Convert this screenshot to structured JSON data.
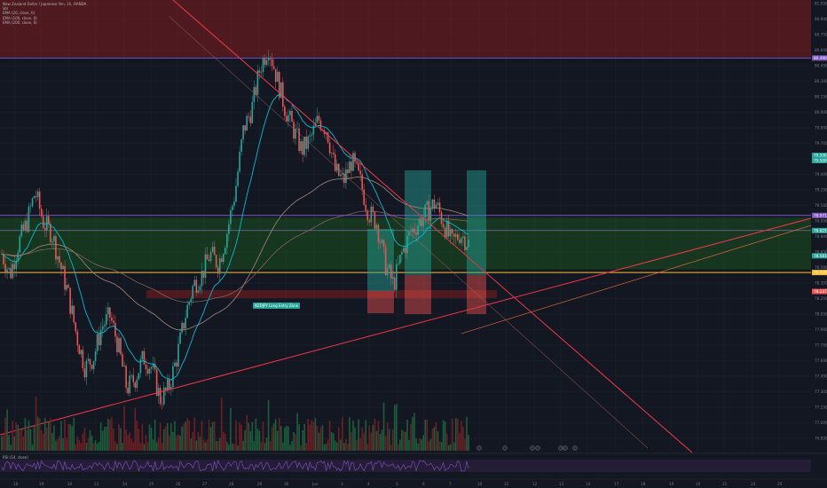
{
  "legend": {
    "title": "New Zealand Dollar / Japanese Yen, 1h, OANDA",
    "vol": "Vol",
    "ema1": "EMA (20, close, 0)",
    "ema2": "EMA (100, close, 0)",
    "ema3": "EMA (200, close, 0)"
  },
  "rsi_label": "RSI (14, close)",
  "annotation": "NZDJPY Long Entry Zone",
  "colors": {
    "bull": "#26a69a",
    "bear": "#ef5350",
    "ema_fast": "#00bcd4",
    "ema_slow": "#8d6e63",
    "ema_mid": "#a1887f",
    "trendline": "#f23645",
    "channel": "#7b1fa2",
    "zone_green": "#1b5e20",
    "zone_red": "#7f1d1d",
    "yellow_line": "#fbc02d",
    "purple_line": "#7e57c2",
    "rsi": "#7e57c2"
  },
  "chart_data": {
    "type": "candlestick",
    "title": "New Zealand Dollar / Japanese Yen, 1h, OANDA",
    "ylim": [
      76.7,
      81.05
    ],
    "y_ticks": [
      "81.050",
      "80.900",
      "80.750",
      "80.600",
      "80.450",
      "80.300",
      "80.150",
      "80.000",
      "79.850",
      "79.700",
      "79.550",
      "79.400",
      "79.250",
      "79.100",
      "78.950",
      "78.800",
      "78.650",
      "78.500",
      "78.350",
      "78.200",
      "78.050",
      "77.900",
      "77.750",
      "77.600",
      "77.450",
      "77.300",
      "77.150",
      "77.000",
      "76.850"
    ],
    "x_ticks": [
      "18",
      "19",
      "20",
      "23",
      "24",
      "25",
      "26",
      "27",
      "28",
      "29",
      "30",
      "Jun",
      "3",
      "4",
      "5",
      "6",
      "7",
      "10",
      "11",
      "12",
      "13",
      "14",
      "17",
      "18",
      "19",
      "20",
      "21",
      "24",
      "25"
    ],
    "price_tags": [
      {
        "price": "80.490",
        "color": "#7e57c2"
      },
      {
        "price": "79.550",
        "color": "#26a69a"
      },
      {
        "price": "79.500",
        "color": "#26a69a"
      },
      {
        "price": "78.971",
        "color": "#7e57c2"
      },
      {
        "price": "78.825",
        "color": "#26a69a"
      },
      {
        "price": "78.581",
        "color": "#26a69a"
      },
      {
        "price": "78.420",
        "color": "#fbc02d"
      },
      {
        "price": "78.237",
        "color": "#ef5350"
      }
    ],
    "close_path": [
      78.6,
      78.4,
      78.7,
      78.9,
      79.2,
      78.9,
      78.8,
      78.5,
      78.2,
      77.8,
      77.5,
      77.6,
      77.9,
      78.0,
      77.7,
      77.3,
      77.4,
      77.6,
      77.5,
      77.2,
      77.3,
      77.6,
      78.0,
      78.3,
      78.4,
      78.6,
      78.5,
      78.8,
      79.2,
      79.8,
      80.0,
      80.4,
      80.6,
      80.3,
      80.0,
      79.8,
      79.6,
      79.7,
      79.9,
      79.8,
      79.4,
      79.3,
      79.5,
      79.3,
      79.0,
      78.9,
      78.5,
      78.3,
      78.6,
      78.8,
      78.9,
      79.0,
      79.1,
      78.9,
      78.7,
      78.8,
      78.7
    ],
    "sell_zone": [
      80.5,
      81.05
    ],
    "buy_zone": [
      78.45,
      78.95
    ],
    "levels": [
      80.49,
      78.971,
      78.825,
      78.42
    ]
  }
}
